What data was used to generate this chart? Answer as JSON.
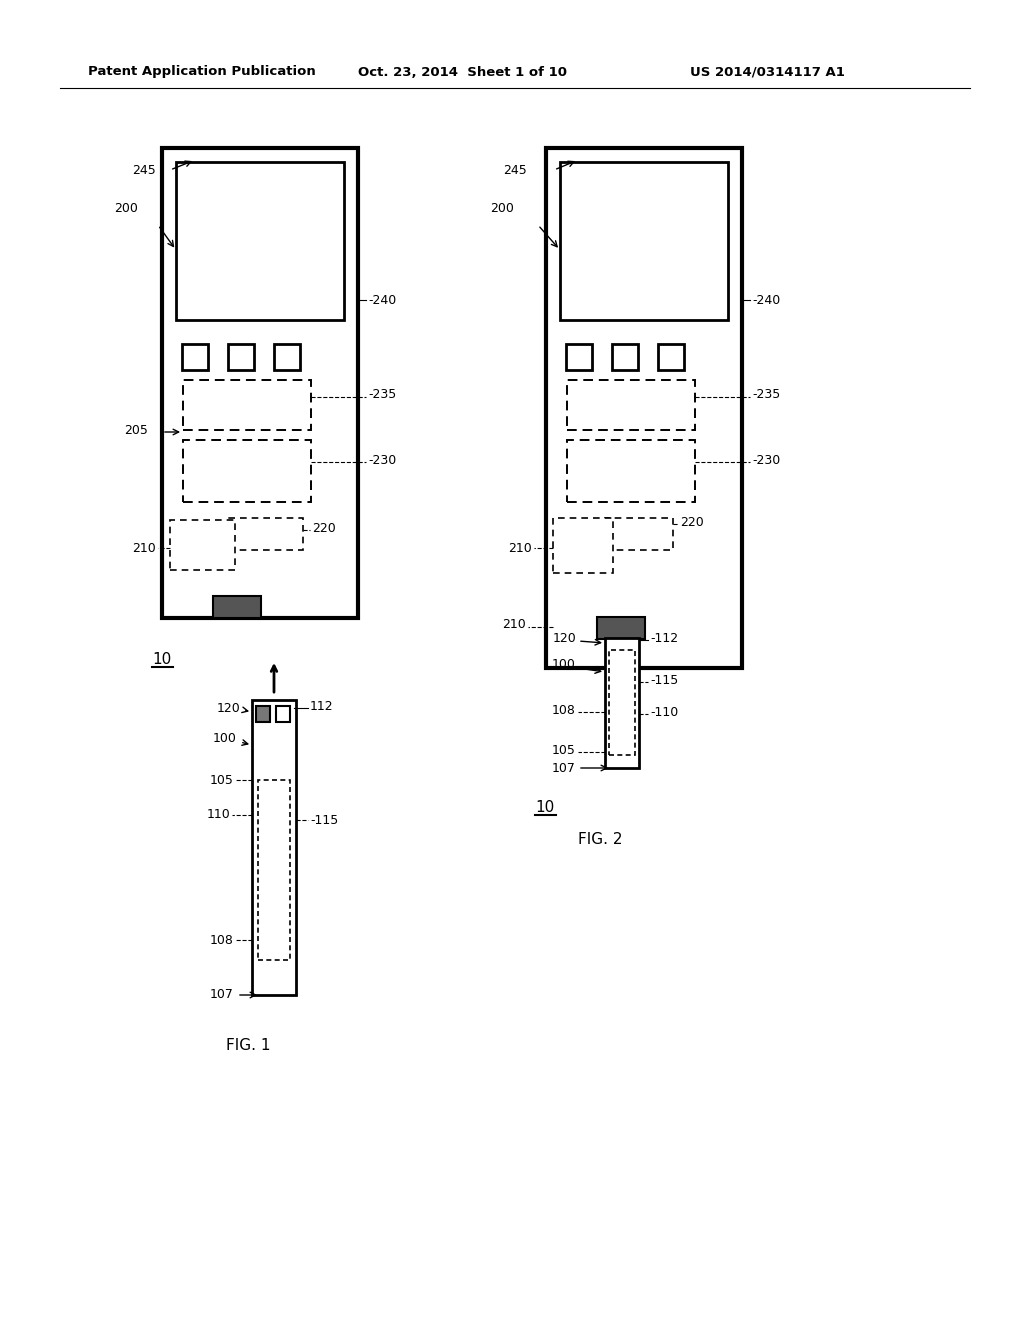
{
  "bg_color": "#ffffff",
  "header_text": "Patent Application Publication",
  "header_date": "Oct. 23, 2014  Sheet 1 of 10",
  "header_patent": "US 2014/0314117 A1",
  "fig1_label": "FIG. 1",
  "fig2_label": "FIG. 2",
  "label_10": "10"
}
